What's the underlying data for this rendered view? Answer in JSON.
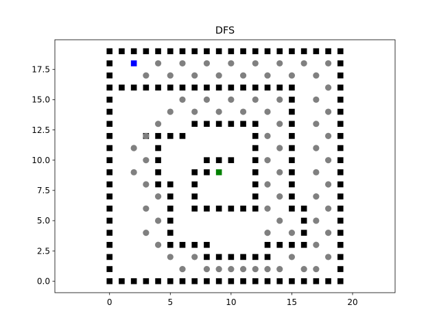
{
  "chart_data": {
    "type": "scatter",
    "title": "DFS",
    "xlabel": "",
    "ylabel": "",
    "xlim": [
      -4.5,
      23.5
    ],
    "ylim": [
      -0.95,
      19.95
    ],
    "x_ticks": [
      0,
      5,
      10,
      15,
      20
    ],
    "y_ticks": [
      0.0,
      2.5,
      5.0,
      7.5,
      10.0,
      12.5,
      15.0,
      17.5
    ],
    "x_tick_labels": [
      "0",
      "5",
      "10",
      "15",
      "20"
    ],
    "y_tick_labels": [
      "0.0",
      "2.5",
      "5.0",
      "7.5",
      "10.0",
      "12.5",
      "15.0",
      "17.5"
    ],
    "grid": false,
    "legend": "none",
    "series": [
      {
        "marker": "square",
        "color": "#000000",
        "points": [
          [
            0,
            19
          ],
          [
            1,
            19
          ],
          [
            2,
            19
          ],
          [
            3,
            19
          ],
          [
            4,
            19
          ],
          [
            5,
            19
          ],
          [
            6,
            19
          ],
          [
            7,
            19
          ],
          [
            8,
            19
          ],
          [
            9,
            19
          ],
          [
            10,
            19
          ],
          [
            11,
            19
          ],
          [
            12,
            19
          ],
          [
            13,
            19
          ],
          [
            14,
            19
          ],
          [
            15,
            19
          ],
          [
            16,
            19
          ],
          [
            17,
            19
          ],
          [
            18,
            19
          ],
          [
            19,
            19
          ],
          [
            0,
            0
          ],
          [
            1,
            0
          ],
          [
            2,
            0
          ],
          [
            3,
            0
          ],
          [
            4,
            0
          ],
          [
            5,
            0
          ],
          [
            6,
            0
          ],
          [
            7,
            0
          ],
          [
            8,
            0
          ],
          [
            9,
            0
          ],
          [
            10,
            0
          ],
          [
            11,
            0
          ],
          [
            12,
            0
          ],
          [
            13,
            0
          ],
          [
            14,
            0
          ],
          [
            15,
            0
          ],
          [
            16,
            0
          ],
          [
            17,
            0
          ],
          [
            18,
            0
          ],
          [
            19,
            0
          ],
          [
            0,
            1
          ],
          [
            0,
            2
          ],
          [
            0,
            3
          ],
          [
            0,
            4
          ],
          [
            0,
            5
          ],
          [
            0,
            6
          ],
          [
            0,
            7
          ],
          [
            0,
            8
          ],
          [
            0,
            9
          ],
          [
            0,
            10
          ],
          [
            0,
            11
          ],
          [
            0,
            12
          ],
          [
            0,
            13
          ],
          [
            0,
            14
          ],
          [
            0,
            15
          ],
          [
            0,
            16
          ],
          [
            0,
            17
          ],
          [
            0,
            18
          ],
          [
            19,
            1
          ],
          [
            19,
            2
          ],
          [
            19,
            3
          ],
          [
            19,
            4
          ],
          [
            19,
            5
          ],
          [
            19,
            6
          ],
          [
            19,
            7
          ],
          [
            19,
            8
          ],
          [
            19,
            9
          ],
          [
            19,
            10
          ],
          [
            19,
            11
          ],
          [
            19,
            12
          ],
          [
            19,
            13
          ],
          [
            19,
            14
          ],
          [
            19,
            15
          ],
          [
            19,
            16
          ],
          [
            19,
            17
          ],
          [
            19,
            18
          ],
          [
            1,
            16
          ],
          [
            2,
            16
          ],
          [
            3,
            16
          ],
          [
            4,
            16
          ],
          [
            5,
            16
          ],
          [
            6,
            16
          ],
          [
            7,
            16
          ],
          [
            8,
            16
          ],
          [
            9,
            16
          ],
          [
            10,
            16
          ],
          [
            11,
            16
          ],
          [
            12,
            16
          ],
          [
            13,
            16
          ],
          [
            14,
            16
          ],
          [
            15,
            16
          ],
          [
            15,
            15
          ],
          [
            15,
            14
          ],
          [
            15,
            13
          ],
          [
            15,
            12
          ],
          [
            15,
            11
          ],
          [
            15,
            10
          ],
          [
            15,
            9
          ],
          [
            15,
            8
          ],
          [
            15,
            7
          ],
          [
            15,
            6
          ],
          [
            16,
            6
          ],
          [
            16,
            5
          ],
          [
            16,
            4
          ],
          [
            16,
            3
          ],
          [
            15,
            3
          ],
          [
            14,
            3
          ],
          [
            13,
            3
          ],
          [
            7,
            13
          ],
          [
            8,
            13
          ],
          [
            9,
            13
          ],
          [
            10,
            13
          ],
          [
            11,
            13
          ],
          [
            12,
            13
          ],
          [
            12,
            12
          ],
          [
            12,
            11
          ],
          [
            12,
            10
          ],
          [
            12,
            9
          ],
          [
            12,
            8
          ],
          [
            12,
            7
          ],
          [
            3,
            12
          ],
          [
            4,
            12
          ],
          [
            5,
            12
          ],
          [
            6,
            12
          ],
          [
            4,
            11
          ],
          [
            4,
            10
          ],
          [
            4,
            9
          ],
          [
            4,
            8
          ],
          [
            5,
            8
          ],
          [
            5,
            7
          ],
          [
            5,
            6
          ],
          [
            5,
            5
          ],
          [
            5,
            4
          ],
          [
            5,
            3
          ],
          [
            6,
            3
          ],
          [
            7,
            3
          ],
          [
            8,
            3
          ],
          [
            8,
            2
          ],
          [
            9,
            2
          ],
          [
            10,
            2
          ],
          [
            11,
            2
          ],
          [
            12,
            2
          ],
          [
            13,
            2
          ],
          [
            8,
            10
          ],
          [
            9,
            10
          ],
          [
            10,
            10
          ],
          [
            7,
            9
          ],
          [
            8,
            9
          ],
          [
            7,
            8
          ],
          [
            7,
            7
          ],
          [
            7,
            6
          ],
          [
            8,
            6
          ],
          [
            9,
            6
          ],
          [
            10,
            6
          ],
          [
            11,
            6
          ],
          [
            12,
            6
          ]
        ]
      },
      {
        "marker": "circle",
        "color": "#808080",
        "points": [
          [
            4,
            18
          ],
          [
            6,
            18
          ],
          [
            8,
            18
          ],
          [
            10,
            18
          ],
          [
            12,
            18
          ],
          [
            14,
            18
          ],
          [
            16,
            18
          ],
          [
            18,
            18
          ],
          [
            3,
            17
          ],
          [
            5,
            17
          ],
          [
            7,
            17
          ],
          [
            9,
            17
          ],
          [
            11,
            17
          ],
          [
            13,
            17
          ],
          [
            15,
            17
          ],
          [
            17,
            17
          ],
          [
            18,
            16
          ],
          [
            6,
            15
          ],
          [
            8,
            15
          ],
          [
            10,
            15
          ],
          [
            12,
            15
          ],
          [
            14,
            15
          ],
          [
            17,
            15
          ],
          [
            5,
            14
          ],
          [
            7,
            14
          ],
          [
            9,
            14
          ],
          [
            11,
            14
          ],
          [
            13,
            14
          ],
          [
            18,
            14
          ],
          [
            4,
            13
          ],
          [
            14,
            13
          ],
          [
            17,
            13
          ],
          [
            3,
            12
          ],
          [
            13,
            12
          ],
          [
            18,
            12
          ],
          [
            2,
            11
          ],
          [
            14,
            11
          ],
          [
            17,
            11
          ],
          [
            3,
            10
          ],
          [
            13,
            10
          ],
          [
            18,
            10
          ],
          [
            2,
            9
          ],
          [
            14,
            9
          ],
          [
            17,
            9
          ],
          [
            3,
            8
          ],
          [
            13,
            8
          ],
          [
            18,
            8
          ],
          [
            4,
            7
          ],
          [
            14,
            7
          ],
          [
            17,
            7
          ],
          [
            3,
            6
          ],
          [
            13,
            6
          ],
          [
            18,
            6
          ],
          [
            4,
            5
          ],
          [
            14,
            5
          ],
          [
            17,
            5
          ],
          [
            3,
            4
          ],
          [
            13,
            4
          ],
          [
            15,
            4
          ],
          [
            18,
            4
          ],
          [
            4,
            3
          ],
          [
            17,
            3
          ],
          [
            5,
            2
          ],
          [
            7,
            2
          ],
          [
            15,
            2
          ],
          [
            18,
            2
          ],
          [
            6,
            1
          ],
          [
            8,
            1
          ],
          [
            9,
            1
          ],
          [
            10,
            1
          ],
          [
            11,
            1
          ],
          [
            12,
            1
          ],
          [
            13,
            1
          ],
          [
            14,
            1
          ],
          [
            16,
            1
          ],
          [
            17,
            1
          ]
        ]
      },
      {
        "marker": "square",
        "color": "#0000ff",
        "points": [
          [
            2,
            18
          ]
        ]
      },
      {
        "marker": "square",
        "color": "#008000",
        "points": [
          [
            9,
            9
          ]
        ]
      }
    ]
  }
}
